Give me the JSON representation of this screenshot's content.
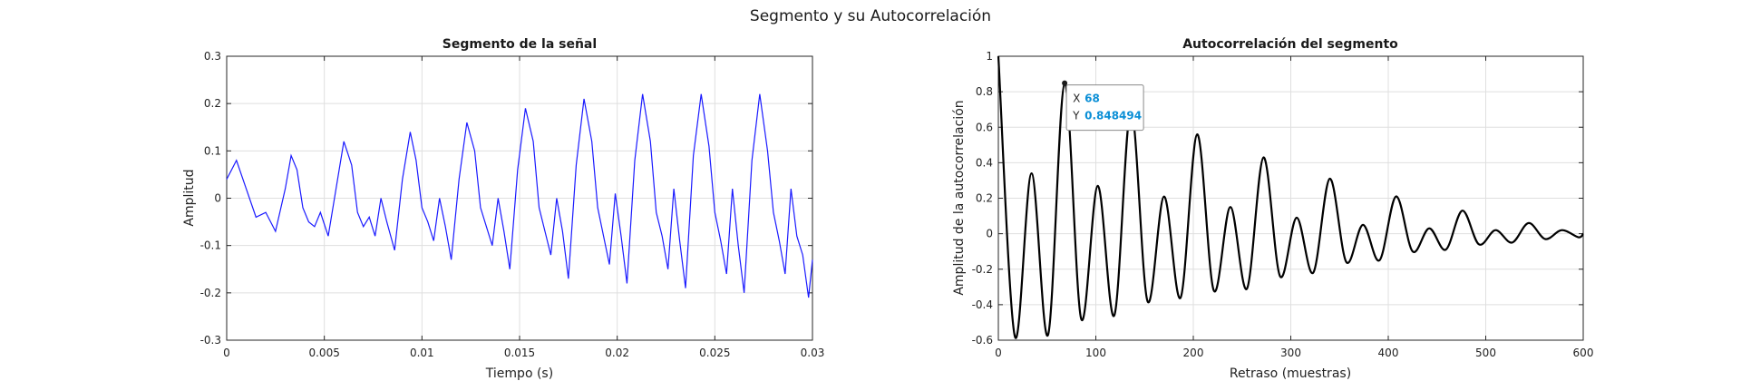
{
  "figure_title": "Segmento y su Autocorrelación",
  "chart_data": [
    {
      "type": "line",
      "title": "Segmento de la señal",
      "xlabel": "Tiempo (s)",
      "ylabel": "Amplitud",
      "xlim": [
        0,
        0.03
      ],
      "ylim": [
        -0.3,
        0.3
      ],
      "xticks": [
        0,
        0.005,
        0.01,
        0.015,
        0.02,
        0.025,
        0.03
      ],
      "xtick_labels": [
        "0",
        "0.005",
        "0.01",
        "0.015",
        "0.02",
        "0.025",
        "0.03"
      ],
      "yticks": [
        -0.3,
        -0.2,
        -0.1,
        0,
        0.1,
        0.2,
        0.3
      ],
      "ytick_labels": [
        "-0.3",
        "-0.2",
        "-0.1",
        "0",
        "0.1",
        "0.2",
        "0.3"
      ],
      "grid": true,
      "line_color": "#1a1aff",
      "series": [
        {
          "x": [
            0,
            0.0005,
            0.001,
            0.0015,
            0.002,
            0.0025,
            0.003,
            0.0033,
            0.0036,
            0.0039,
            0.0042,
            0.0045,
            0.0048,
            0.0052,
            0.0056,
            0.006,
            0.0064,
            0.0067,
            0.007,
            0.0073,
            0.0076,
            0.0079,
            0.0082,
            0.0086,
            0.009,
            0.0094,
            0.0097,
            0.01,
            0.0103,
            0.0106,
            0.0109,
            0.0112,
            0.0115,
            0.0119,
            0.0123,
            0.0127,
            0.013,
            0.0133,
            0.0136,
            0.0139,
            0.0142,
            0.0145,
            0.0149,
            0.0153,
            0.0157,
            0.016,
            0.0163,
            0.0166,
            0.0169,
            0.0172,
            0.0175,
            0.0179,
            0.0183,
            0.0187,
            0.019,
            0.0193,
            0.0196,
            0.0199,
            0.0202,
            0.0205,
            0.0209,
            0.0213,
            0.0217,
            0.022,
            0.0223,
            0.0226,
            0.0229,
            0.0232,
            0.0235,
            0.0239,
            0.0243,
            0.0247,
            0.025,
            0.0253,
            0.0256,
            0.0259,
            0.0262,
            0.0265,
            0.0269,
            0.0273,
            0.0277,
            0.028,
            0.0283,
            0.0286,
            0.0289,
            0.0292,
            0.0295,
            0.0298,
            0.03
          ],
          "y": [
            0.04,
            0.08,
            0.02,
            -0.04,
            -0.03,
            -0.07,
            0.02,
            0.09,
            0.06,
            -0.02,
            -0.05,
            -0.06,
            -0.03,
            -0.08,
            0.02,
            0.12,
            0.07,
            -0.03,
            -0.06,
            -0.04,
            -0.08,
            0.0,
            -0.05,
            -0.11,
            0.04,
            0.14,
            0.08,
            -0.02,
            -0.05,
            -0.09,
            0.0,
            -0.06,
            -0.13,
            0.04,
            0.16,
            0.1,
            -0.02,
            -0.06,
            -0.1,
            0.0,
            -0.07,
            -0.15,
            0.06,
            0.19,
            0.12,
            -0.02,
            -0.07,
            -0.12,
            0.0,
            -0.07,
            -0.17,
            0.07,
            0.21,
            0.12,
            -0.02,
            -0.08,
            -0.14,
            0.01,
            -0.08,
            -0.18,
            0.08,
            0.22,
            0.12,
            -0.03,
            -0.08,
            -0.15,
            0.02,
            -0.09,
            -0.19,
            0.09,
            0.22,
            0.11,
            -0.03,
            -0.09,
            -0.16,
            0.02,
            -0.1,
            -0.2,
            0.08,
            0.22,
            0.1,
            -0.03,
            -0.09,
            -0.16,
            0.02,
            -0.08,
            -0.12,
            -0.21,
            -0.13
          ]
        }
      ]
    },
    {
      "type": "line",
      "title": "Autocorrelación del segmento",
      "xlabel": "Retraso (muestras)",
      "ylabel": "Amplitud de la autocorrelación",
      "xlim": [
        0,
        600
      ],
      "ylim": [
        -0.6,
        1
      ],
      "xticks": [
        0,
        100,
        200,
        300,
        400,
        500,
        600
      ],
      "xtick_labels": [
        "0",
        "100",
        "200",
        "300",
        "400",
        "500",
        "600"
      ],
      "yticks": [
        -0.6,
        -0.4,
        -0.2,
        0,
        0.2,
        0.4,
        0.6,
        0.8,
        1
      ],
      "ytick_labels": [
        "-0.6",
        "-0.4",
        "-0.2",
        "0",
        "0.2",
        "0.4",
        "0.6",
        "0.8",
        "1"
      ],
      "grid": true,
      "line_color": "#000000",
      "series": [
        {
          "x": [
            0,
            17,
            34,
            51,
            68,
            85,
            102,
            119,
            136,
            153,
            170,
            187,
            204,
            221,
            238,
            255,
            272,
            289,
            306,
            323,
            340,
            357,
            374,
            391,
            408,
            425,
            442,
            459,
            476,
            493,
            510,
            527,
            544,
            561,
            578,
            595,
            600
          ],
          "y": [
            1.0,
            -0.58,
            0.34,
            -0.57,
            0.848494,
            -0.48,
            0.27,
            -0.46,
            0.7,
            -0.38,
            0.21,
            -0.36,
            0.56,
            -0.32,
            0.15,
            -0.31,
            0.43,
            -0.24,
            0.09,
            -0.22,
            0.31,
            -0.16,
            0.05,
            -0.15,
            0.21,
            -0.1,
            0.03,
            -0.09,
            0.13,
            -0.06,
            0.02,
            -0.05,
            0.06,
            -0.03,
            0.02,
            -0.02,
            0.0
          ]
        }
      ],
      "datatip": {
        "x_label": "X",
        "x_value": "68",
        "y_label": "Y",
        "y_value": "0.848494",
        "x": 68,
        "y": 0.848494
      }
    }
  ]
}
